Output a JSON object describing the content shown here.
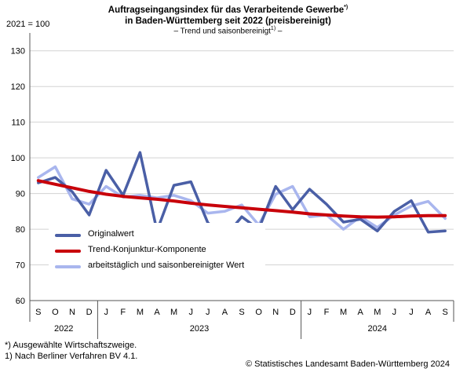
{
  "title_line1": "Auftragseingangsindex für das Verarbeitende Gewerbe",
  "title_line1_sup": "*)",
  "title_line2": "in Baden-Württemberg seit 2022 (preisbereinigt)",
  "subtitle_pre": "– Trend und saisonbereinigt",
  "subtitle_sup": "1)",
  "subtitle_post": " –",
  "base_label": "2021 = 100",
  "footnote1": "*) Ausgewählte Wirtschaftszweige.",
  "footnote2": "1) Nach Berliner Verfahren BV 4.1.",
  "source": "© Statistisches Landesamt Baden-Württemberg 2024",
  "colors": {
    "original": "#4a5fa6",
    "trend": "#c8000a",
    "adjusted": "#a9b6ee",
    "grid": "#d3d3d3",
    "axis": "#555555"
  },
  "chart_data": {
    "type": "line",
    "ylim": [
      60,
      135
    ],
    "yticks": [
      60,
      70,
      80,
      90,
      100,
      110,
      120,
      130
    ],
    "grid": "horizontal",
    "legend_position": "bottom-left",
    "months": [
      "S",
      "O",
      "N",
      "D",
      "J",
      "F",
      "M",
      "A",
      "M",
      "J",
      "J",
      "A",
      "S",
      "O",
      "N",
      "D",
      "J",
      "F",
      "M",
      "A",
      "M",
      "J",
      "J",
      "A",
      "S"
    ],
    "years": [
      {
        "label": "2022",
        "start": 0,
        "end": 4
      },
      {
        "label": "2023",
        "start": 4,
        "end": 16
      },
      {
        "label": "2024",
        "start": 16,
        "end": 25
      }
    ],
    "series": [
      {
        "name": "Originalwert",
        "key": "original",
        "values": [
          93.0,
          94.5,
          90.5,
          84.0,
          96.5,
          89.5,
          101.5,
          79.5,
          92.3,
          93.3,
          81.8,
          77.8,
          83.5,
          80.0,
          92.0,
          85.5,
          91.2,
          87.0,
          82.0,
          82.8,
          79.5,
          85.0,
          88.0,
          79.2,
          79.5
        ]
      },
      {
        "name": "Trend-Konjunktur-Komponente",
        "key": "trend",
        "values": [
          93.6,
          92.6,
          91.6,
          90.6,
          89.8,
          89.2,
          88.8,
          88.4,
          87.9,
          87.3,
          86.8,
          86.4,
          86.0,
          85.6,
          85.2,
          84.8,
          84.3,
          84.0,
          83.7,
          83.5,
          83.4,
          83.5,
          83.7,
          83.8,
          83.8
        ]
      },
      {
        "name": "arbeitstäglich und saisonbereinigter Wert",
        "key": "adjusted",
        "values": [
          94.5,
          97.5,
          88.5,
          87.0,
          92.0,
          89.0,
          89.5,
          88.8,
          89.5,
          88.0,
          84.5,
          85.0,
          86.8,
          81.2,
          89.8,
          92.0,
          83.5,
          84.0,
          80.0,
          83.5,
          80.5,
          84.0,
          86.5,
          87.8,
          83.0
        ]
      }
    ]
  }
}
